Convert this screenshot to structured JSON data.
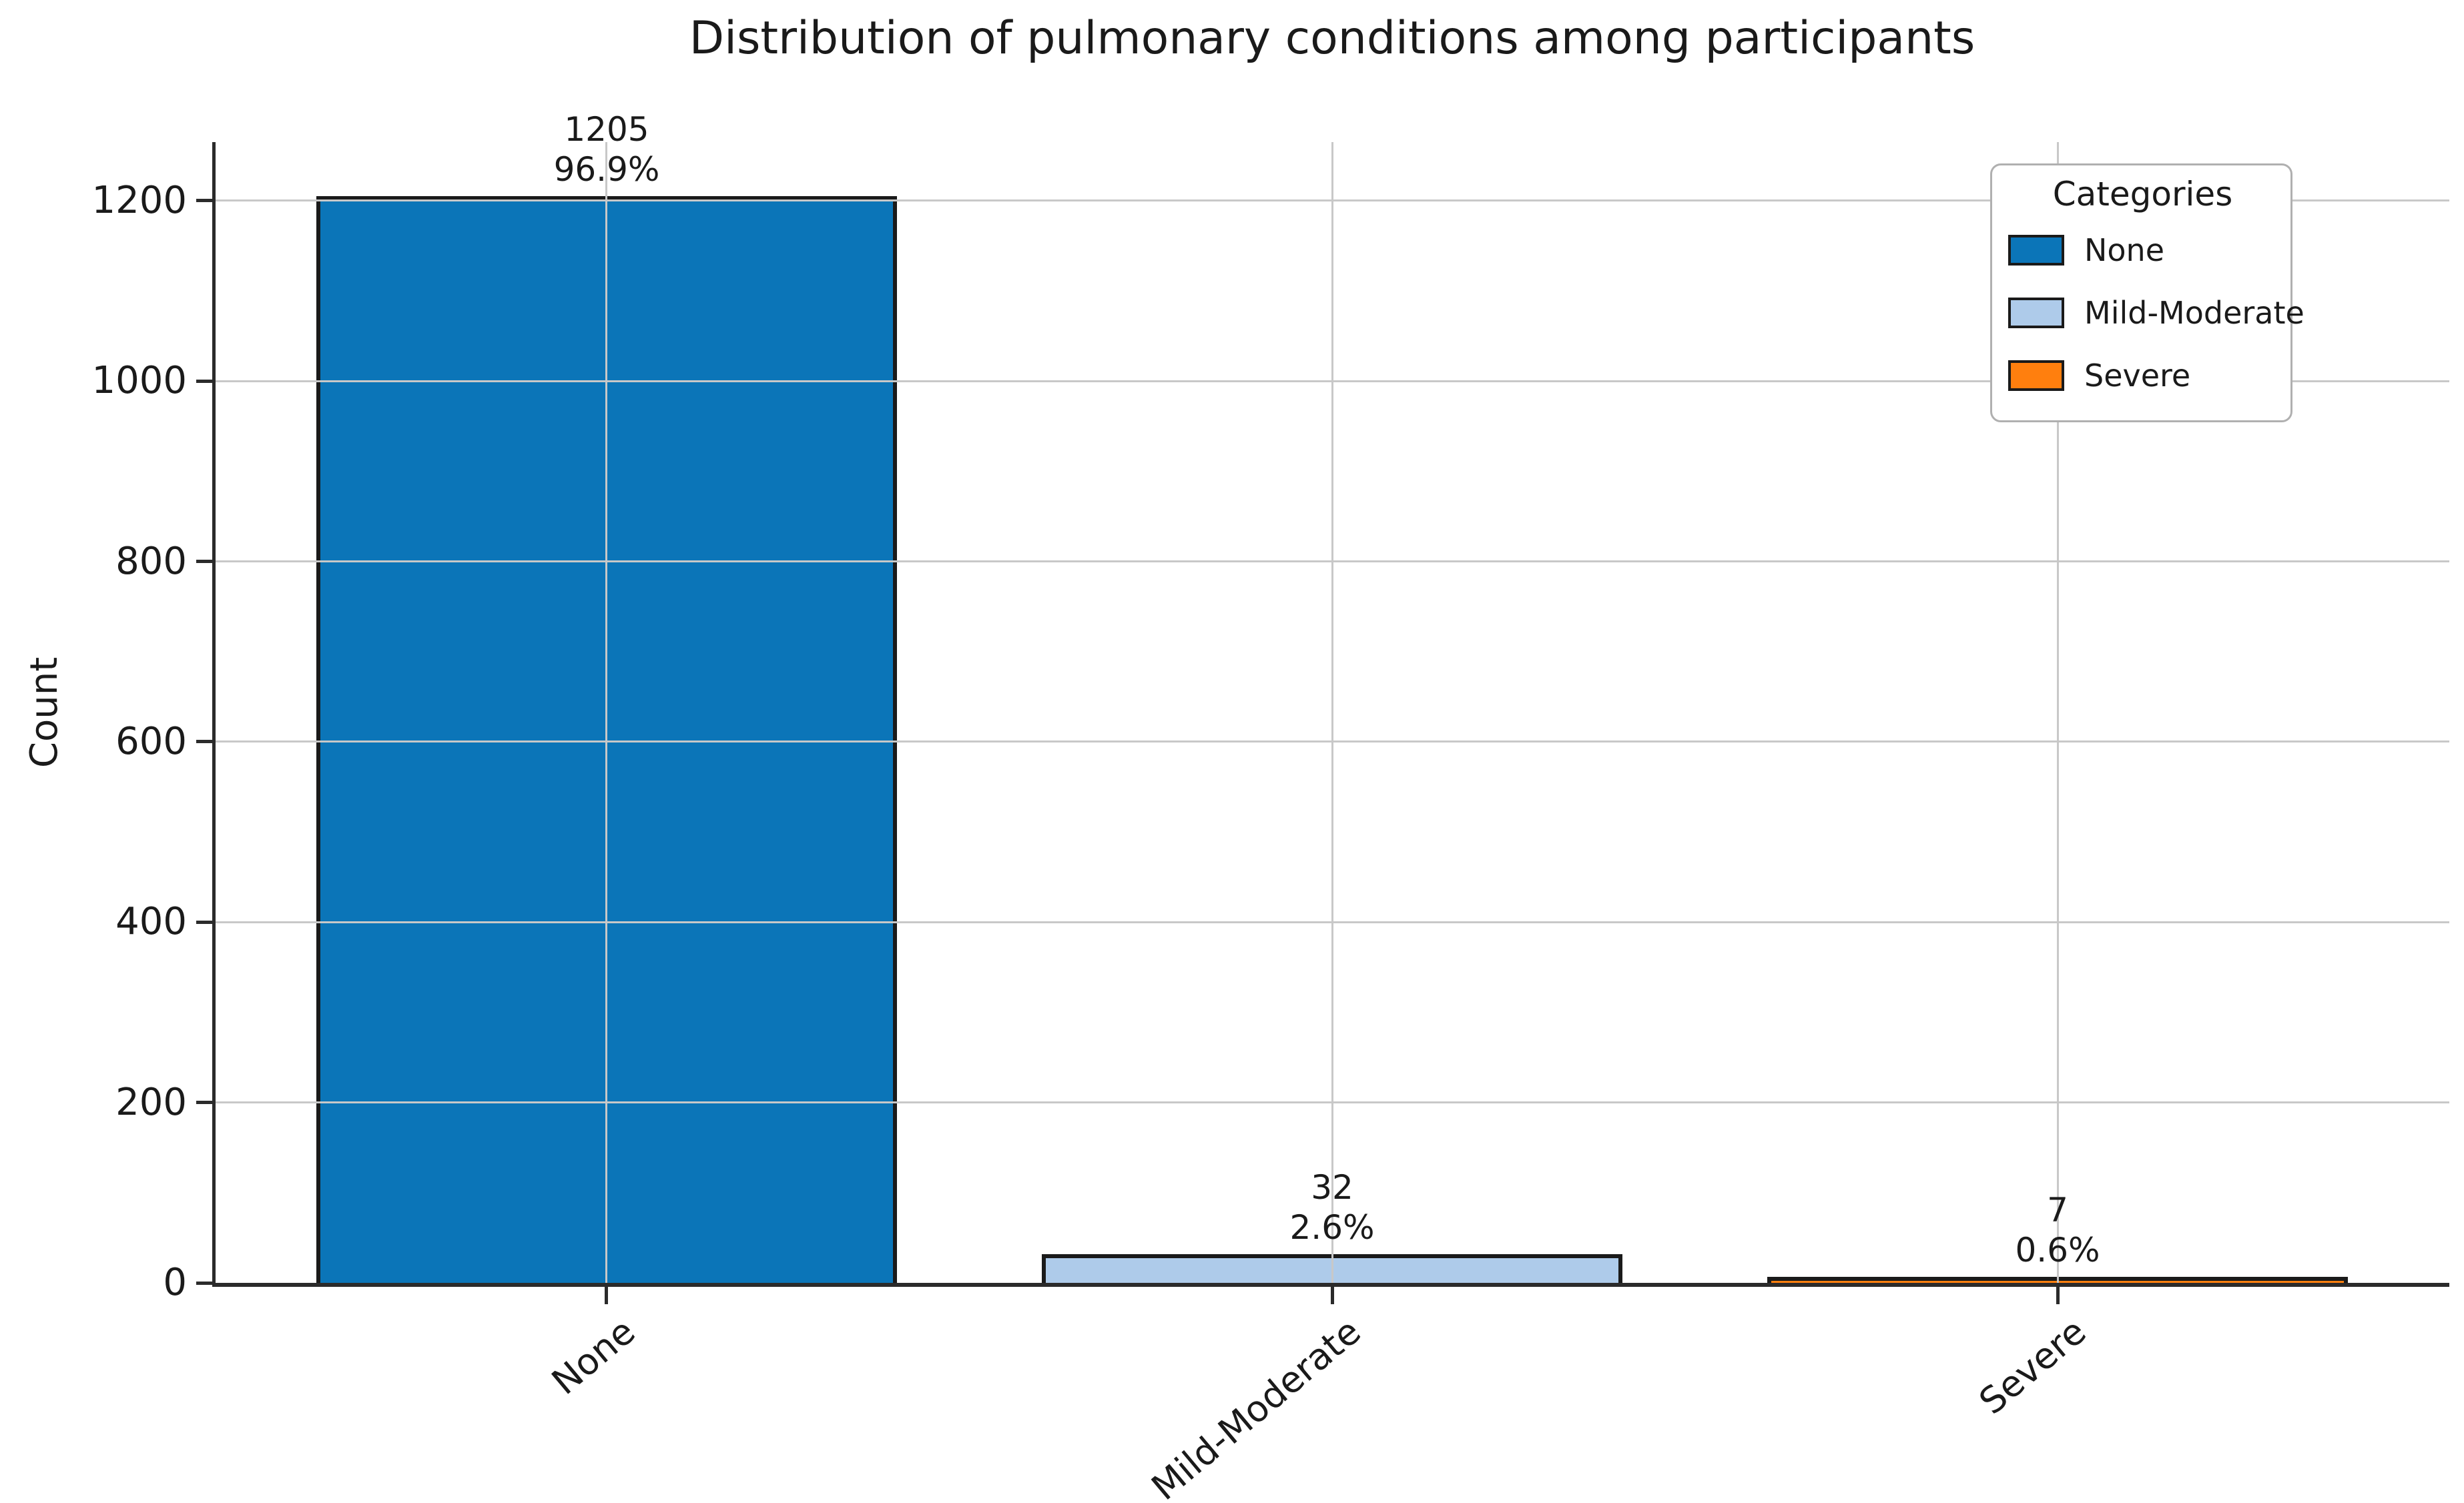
{
  "chart_data": {
    "type": "bar",
    "title": "Distribution of pulmonary conditions among participants",
    "xlabel": "",
    "ylabel": "Count",
    "categories": [
      "None",
      "Mild-Moderate",
      "Severe"
    ],
    "values": [
      1205,
      32,
      7
    ],
    "percentages": [
      "96.9%",
      "2.6%",
      "0.6%"
    ],
    "bar_colors": [
      "#0b75b8",
      "#aecbea",
      "#ff7f0e"
    ],
    "bar_edge_color": "#1a1a1a",
    "yticks": [
      0,
      200,
      400,
      600,
      800,
      1000,
      1200
    ],
    "ytick_labels": [
      "0",
      "200",
      "400",
      "600",
      "800",
      "1000",
      "1200"
    ],
    "ylim": [
      0,
      1265
    ],
    "grid": true,
    "grid_color": "#c8c8c8",
    "x_tick_rotation_deg": 40,
    "legend": {
      "title": "Categories",
      "position": "upper right",
      "entries": [
        {
          "label": "None",
          "color": "#0b75b8"
        },
        {
          "label": "Mild-Moderate",
          "color": "#aecbea"
        },
        {
          "label": "Severe",
          "color": "#ff7f0e"
        }
      ]
    }
  }
}
